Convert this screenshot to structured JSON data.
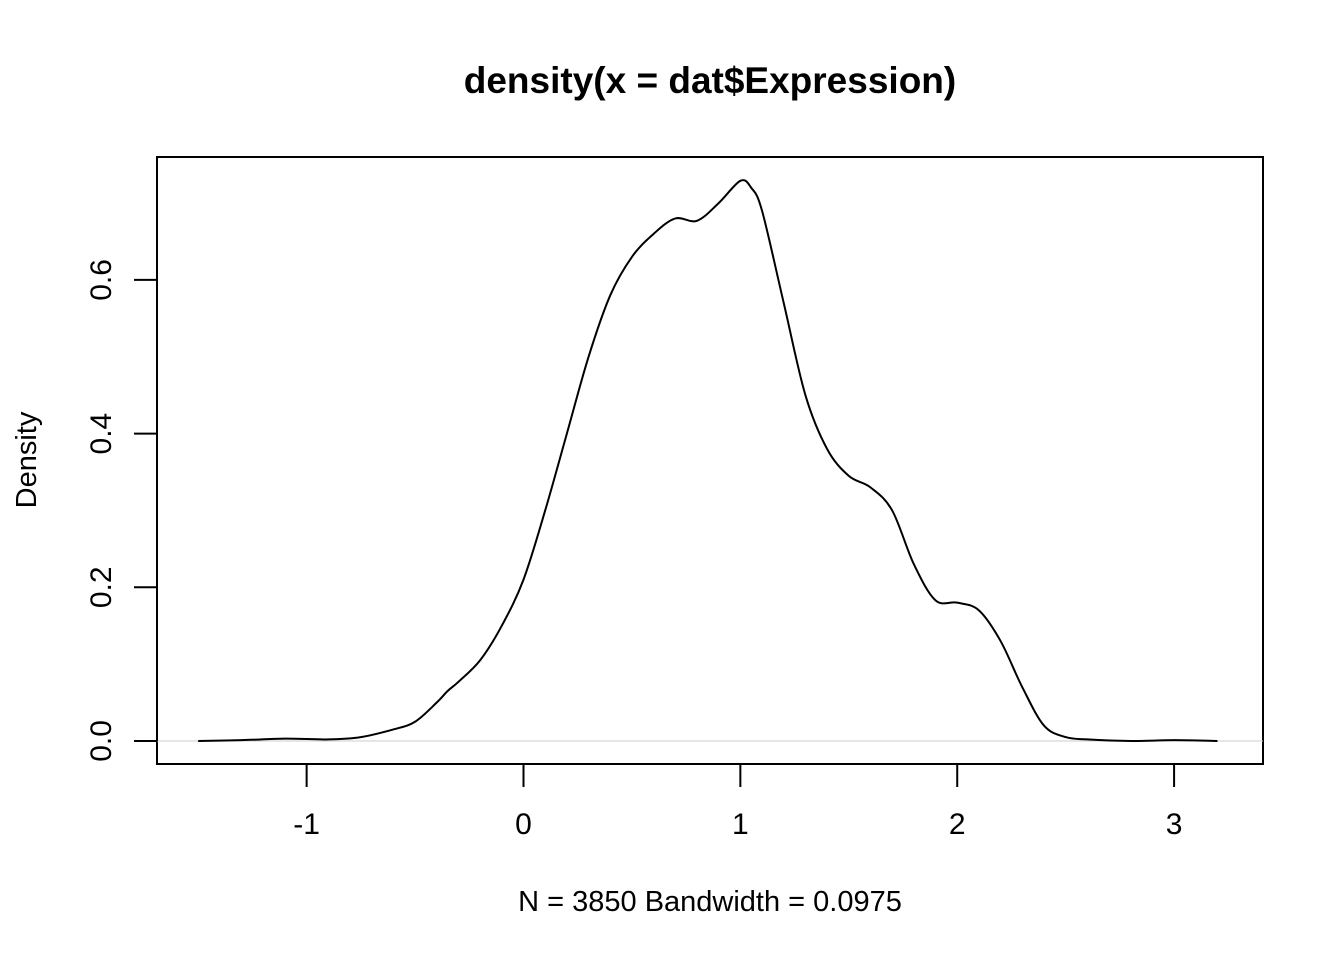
{
  "chart_data": {
    "type": "line",
    "title": "density(x = dat$Expression)",
    "xlabel": "N = 3850   Bandwidth = 0.0975",
    "ylabel": "Density",
    "xlim": [
      -1.69,
      3.41
    ],
    "ylim": [
      -0.03,
      0.76
    ],
    "x_ticks": [
      -1,
      0,
      1,
      2,
      3
    ],
    "x_tick_labels": [
      "-1",
      "0",
      "1",
      "2",
      "3"
    ],
    "y_ticks": [
      0.0,
      0.2,
      0.4,
      0.6
    ],
    "y_tick_labels": [
      "0.0",
      "0.2",
      "0.4",
      "0.6"
    ],
    "grid": false,
    "zero_line": true,
    "colors": {
      "line": "#000000",
      "zero_line": "#cccccc",
      "frame": "#000000"
    },
    "series": [
      {
        "x": [
          -1.5,
          -1.3,
          -1.1,
          -0.9,
          -0.75,
          -0.6,
          -0.5,
          -0.4,
          -0.35,
          -0.3,
          -0.2,
          -0.1,
          0.0,
          0.1,
          0.2,
          0.3,
          0.4,
          0.5,
          0.6,
          0.7,
          0.8,
          0.9,
          1.0,
          1.05,
          1.1,
          1.2,
          1.3,
          1.4,
          1.5,
          1.6,
          1.7,
          1.8,
          1.9,
          2.0,
          2.1,
          2.2,
          2.3,
          2.4,
          2.5,
          2.6,
          2.8,
          3.0,
          3.2
        ],
        "y": [
          0.0,
          0.001,
          0.003,
          0.002,
          0.005,
          0.015,
          0.025,
          0.05,
          0.065,
          0.077,
          0.105,
          0.15,
          0.21,
          0.3,
          0.4,
          0.5,
          0.58,
          0.63,
          0.66,
          0.68,
          0.677,
          0.7,
          0.729,
          0.72,
          0.69,
          0.57,
          0.45,
          0.38,
          0.345,
          0.33,
          0.3,
          0.23,
          0.183,
          0.18,
          0.17,
          0.13,
          0.07,
          0.02,
          0.005,
          0.002,
          0.0,
          0.001,
          0.0
        ]
      }
    ]
  }
}
